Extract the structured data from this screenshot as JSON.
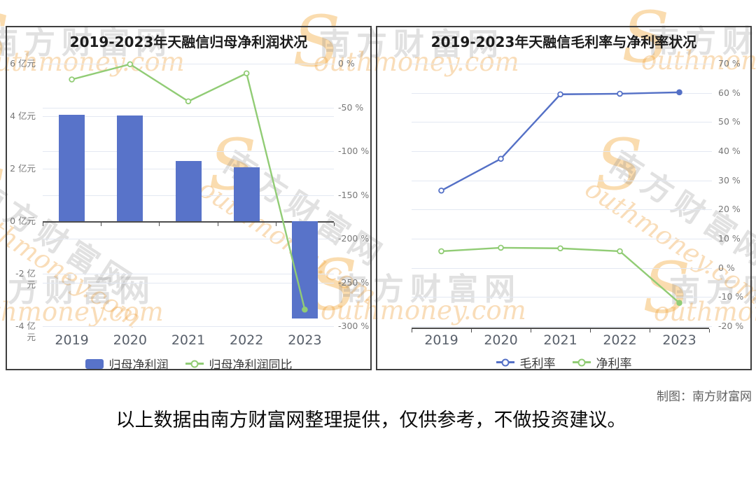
{
  "watermark": {
    "cn": "南方财富网",
    "script": "outhmoney.com",
    "s": "S"
  },
  "chart_data": [
    {
      "type": "bar",
      "title": "2019-2023年天融信归母净利润状况",
      "categories": [
        "2019",
        "2020",
        "2021",
        "2022",
        "2023"
      ],
      "series": [
        {
          "name": "归母净利润",
          "type": "bar",
          "axis": "left",
          "unit": "亿元",
          "values": [
            4.05,
            4.04,
            2.3,
            2.06,
            -3.7
          ]
        },
        {
          "name": "归母净利润同比",
          "type": "line",
          "axis": "right",
          "unit": "%",
          "values": [
            -18,
            -0.6,
            -43,
            -11,
            -281
          ]
        }
      ],
      "left_axis": {
        "max": 6,
        "min": -4,
        "tick_labels": [
          "6 亿元",
          "4 亿元",
          "2 亿元",
          "0 亿元",
          "-2 亿元",
          "-4 亿元"
        ]
      },
      "right_axis": {
        "max": 0,
        "min": -300,
        "tick_labels": [
          "0 %",
          "-50 %",
          "-100 %",
          "-150 %",
          "-200 %",
          "-250 %",
          "-300 %"
        ]
      },
      "legend_position": "bottom",
      "grid": true
    },
    {
      "type": "line",
      "title": "2019-2023年天融信毛利率与净利率状况",
      "categories": [
        "2019",
        "2020",
        "2021",
        "2022",
        "2023"
      ],
      "series": [
        {
          "name": "毛利率",
          "type": "line",
          "unit": "%",
          "values": [
            26.5,
            37.4,
            59.5,
            59.7,
            60.2
          ]
        },
        {
          "name": "净利率",
          "type": "line",
          "unit": "%",
          "values": [
            5.7,
            6.9,
            6.7,
            5.7,
            -12
          ]
        }
      ],
      "y_axis": {
        "max": 70,
        "min": -20,
        "tick_labels": [
          "70 %",
          "60 %",
          "50 %",
          "40 %",
          "30 %",
          "20 %",
          "10 %",
          "0 %",
          "-10 %",
          "-20 %"
        ]
      },
      "legend_position": "bottom",
      "grid": true
    }
  ],
  "footer": {
    "credit": "制图：南方财富网",
    "disclaimer": "以上数据由南方财富网整理提供，仅供参考，不做投资建议。"
  },
  "colors": {
    "bar_blue": "#5873c9",
    "line_blue": "#5470c6",
    "line_green": "#91cc75",
    "grid": "#e3e8f2",
    "axis": "#4d4d4d"
  }
}
